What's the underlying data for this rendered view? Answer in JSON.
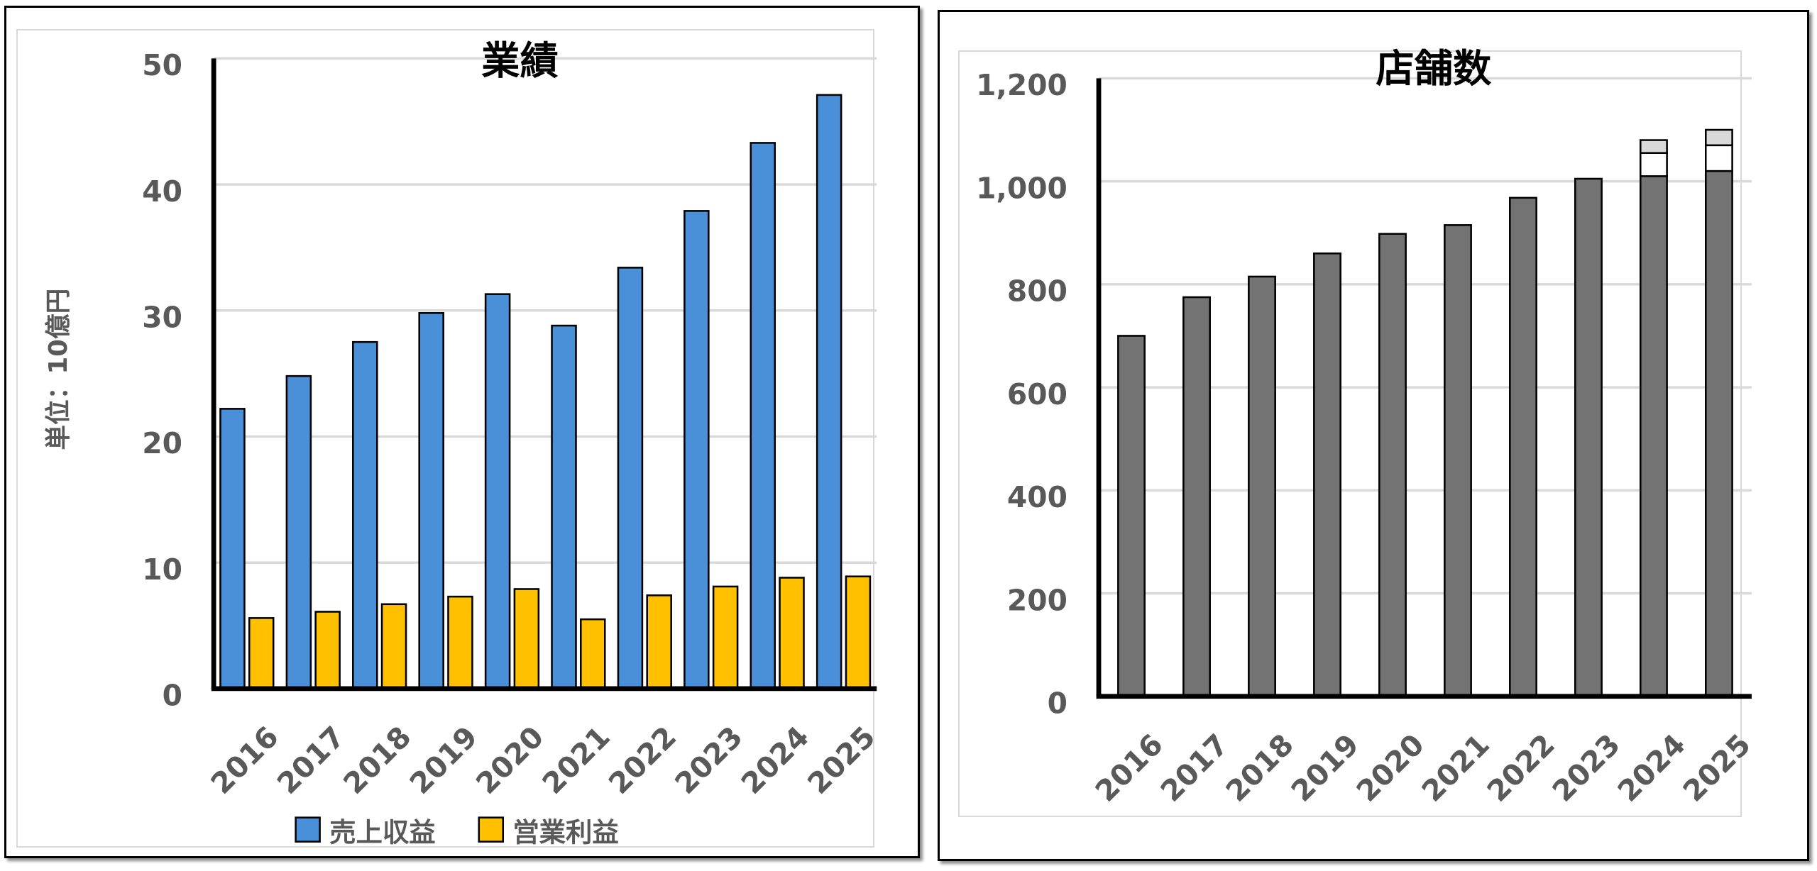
{
  "chart_data": [
    {
      "type": "bar",
      "title": "業績",
      "ylabel": "単位：10億円",
      "xlabel": "",
      "categories": [
        "2016",
        "2017",
        "2018",
        "2019",
        "2020",
        "2021",
        "2022",
        "2023",
        "2024",
        "2025"
      ],
      "ylim": [
        0,
        50
      ],
      "yticks": [
        "0",
        "10",
        "20",
        "30",
        "40",
        "50"
      ],
      "grid": true,
      "legend_position": "bottom",
      "series": [
        {
          "name": "売上収益",
          "color": "#4a90d9",
          "values": [
            22.2,
            24.8,
            27.5,
            29.8,
            31.3,
            28.8,
            33.4,
            37.9,
            43.3,
            47.1
          ]
        },
        {
          "name": "営業利益",
          "color": "#ffc000",
          "values": [
            5.6,
            6.1,
            6.7,
            7.3,
            7.9,
            5.5,
            7.4,
            8.1,
            8.8,
            8.9
          ]
        }
      ]
    },
    {
      "type": "bar",
      "stacked": true,
      "title": "店舗数",
      "xlabel": "",
      "ylabel": "",
      "categories": [
        "2016",
        "2017",
        "2018",
        "2019",
        "2020",
        "2021",
        "2022",
        "2023",
        "2024",
        "2025"
      ],
      "ylim": [
        0,
        1200
      ],
      "yticks": [
        "0",
        "200",
        "400",
        "600",
        "800",
        "1,000",
        "1,200"
      ],
      "grid": true,
      "legend_position": "none",
      "series": [
        {
          "color": "#737373",
          "values": [
            700,
            775,
            815,
            860,
            898,
            915,
            968,
            1005,
            1010,
            1020
          ]
        },
        {
          "color": "#ffffff",
          "values": [
            0,
            0,
            0,
            0,
            0,
            0,
            0,
            0,
            45,
            50
          ]
        },
        {
          "color": "#d9d9d9",
          "values": [
            0,
            0,
            0,
            0,
            0,
            0,
            0,
            0,
            25,
            30
          ]
        }
      ]
    }
  ]
}
